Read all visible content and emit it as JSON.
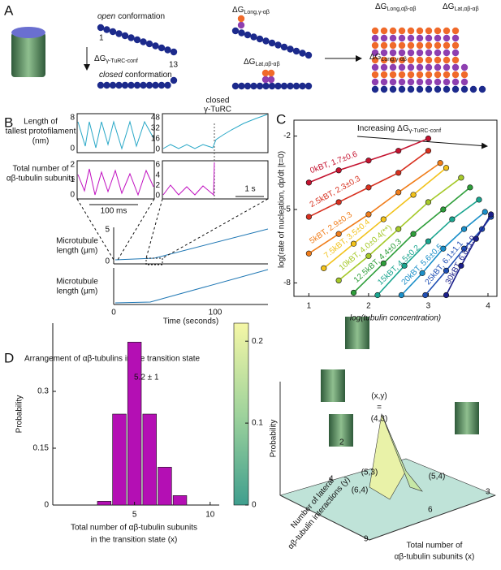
{
  "figure": {
    "A": {
      "label": "A",
      "open": "open",
      "open_rest": "conformation",
      "closed": "closed",
      "closed_rest": "conformation",
      "first": "1",
      "last": "13",
      "conf": {
        "main": "ΔG",
        "sub": "γ-TuRC-conf"
      },
      "long1": {
        "main": "ΔG",
        "sub": "Long,γ-αβ"
      },
      "lat1": {
        "main": "ΔG",
        "sub": "Lat,αβ-αβ"
      },
      "long2": {
        "main": "ΔG",
        "sub": "Long,αβ-αβ"
      },
      "lat2": {
        "main": "ΔG",
        "sub": "Lat,αβ-αβ"
      },
      "long3": {
        "main": "ΔG",
        "sub": "Long,γ-αβ"
      }
    },
    "B": {
      "label": "B",
      "len_label": [
        "Length of",
        "tallest protofilament",
        "(nm)"
      ],
      "num_label": [
        "Total number of",
        "αβ-tubulin subunits"
      ],
      "box1_ticks": [
        "8",
        "0"
      ],
      "box2_ticks": [
        "2",
        "1",
        "0"
      ],
      "box3_ticks": [
        "48",
        "32",
        "16",
        "0"
      ],
      "box4_ticks": [
        "6",
        "4",
        "2",
        "0"
      ],
      "scale1": "100 ms",
      "scale2": "1 s",
      "closed": [
        "closed",
        "γ-TuRC"
      ],
      "mt_label": [
        "Microtubule",
        "length (μm)"
      ],
      "mt_yticks": [
        "5",
        "0"
      ],
      "mt_xticks": [
        "0",
        "100"
      ],
      "time": "Time (seconds)"
    },
    "C": {
      "label": "C",
      "increasing": "Increasing",
      "inc": {
        "main": "ΔG",
        "sub": "γ-TuRC-conf"
      }
    },
    "D": {
      "label": "D",
      "title": "Arrangement of αβ-tubulins in the transition state",
      "peak": [
        "(x,y)",
        "=",
        "(4,3)"
      ],
      "p53": "(5,3)",
      "p54": "(5,4)",
      "p64": "(6,4)",
      "prob3d": "Probability",
      "ylab3d": [
        "Number of lateral",
        "αβ-tubulin interactions (y)"
      ],
      "yticks3d": [
        "2",
        "4"
      ],
      "xticks3d": [
        "9",
        "6",
        "3"
      ],
      "xlab3d": [
        "Total number of",
        "αβ-tubulin subunits (x)"
      ]
    }
  },
  "chart_data": [
    {
      "type": "line",
      "ylabel": "log(rate of nucleation,  dp/dt |t=0)",
      "xlabel": "log(tubulin concentration)",
      "xlim": [
        0.75,
        4.15
      ],
      "ylim": [
        -8.55,
        -1.35
      ],
      "xticks": [
        1,
        2,
        3,
        4
      ],
      "yticks": [
        -2,
        -5,
        -8
      ],
      "series": [
        {
          "name": "0kBT, 1.7±0.6",
          "color": "#c4122f",
          "x": [
            1,
            1.5,
            2,
            2.5,
            3
          ],
          "values": [
            -3.9,
            -3.4,
            -3.0,
            -2.6,
            -2.1
          ]
        },
        {
          "name": "2.5kBT, 2.3±0.3",
          "color": "#d7301f",
          "x": [
            1,
            1.5,
            2,
            2.5,
            3
          ],
          "values": [
            -5.3,
            -4.7,
            -4.1,
            -3.5,
            -2.6
          ]
        },
        {
          "name": "5kBT, 2.9±0.3",
          "color": "#f07d1a",
          "x": [
            1,
            1.5,
            2,
            2.5,
            3.2
          ],
          "values": [
            -6.8,
            -6.0,
            -5.2,
            -4.3,
            -3.1
          ]
        },
        {
          "name": "7.5kBT, 3.5±0.4",
          "color": "#f2c21b",
          "x": [
            1.25,
            1.75,
            2.25,
            2.75,
            3.3
          ],
          "values": [
            -7.4,
            -6.4,
            -5.4,
            -4.4,
            -3.3
          ]
        },
        {
          "name": "10kBT, 4.0±0.4(**)",
          "color": "#a6c92a",
          "x": [
            1.5,
            2,
            2.5,
            3,
            3.55
          ],
          "values": [
            -7.9,
            -6.9,
            -5.8,
            -4.7,
            -3.7
          ]
        },
        {
          "name": "12.5kBT, 4.4±0.3",
          "color": "#2e9e3a",
          "x": [
            1.75,
            2.25,
            2.75,
            3.25,
            3.7
          ],
          "values": [
            -8.4,
            -7.2,
            -6.0,
            -5.0,
            -4.1
          ]
        },
        {
          "name": "15kBT, 4.5±0.2",
          "color": "#1aa58f",
          "x": [
            2.15,
            2.6,
            3.0,
            3.4,
            3.85
          ],
          "values": [
            -8.5,
            -7.3,
            -6.3,
            -5.4,
            -4.6
          ]
        },
        {
          "name": "20kBT, 5.6±0.5",
          "color": "#1b8fc9",
          "x": [
            2.55,
            2.9,
            3.25,
            3.6,
            3.95
          ],
          "values": [
            -8.5,
            -7.6,
            -6.6,
            -5.8,
            -5.1
          ]
        },
        {
          "name": "25kBT, 6.1±1.1",
          "color": "#1f4fb4",
          "x": [
            2.95,
            3.3,
            3.6,
            3.9,
            4.05
          ],
          "values": [
            -8.5,
            -7.5,
            -6.6,
            -5.8,
            -5.3
          ]
        },
        {
          "name": "30kBT, 6.8±1.9",
          "color": "#1b1f8a",
          "x": [
            3.3,
            3.55,
            3.8,
            4.05
          ],
          "values": [
            -8.5,
            -7.3,
            -6.2,
            -5.2
          ]
        }
      ]
    },
    {
      "type": "bar",
      "ylabel": "Probability",
      "xlabel": [
        "Total number of αβ-tubulin subunits",
        "in the transition state (x)"
      ],
      "annotation": "5.2 ± 1",
      "color": "#b40fb4",
      "x": [
        3,
        4,
        5,
        6,
        7,
        8
      ],
      "values": [
        0.01,
        0.24,
        0.43,
        0.24,
        0.1,
        0.025
      ],
      "xlim": [
        -0.4,
        10.6
      ],
      "ylim": [
        0,
        0.48
      ],
      "xticks": [
        5,
        10
      ],
      "yticks": [
        0,
        0.15,
        0.3
      ]
    },
    {
      "type": "colorbar",
      "ylim": [
        0,
        0.222
      ],
      "yticks": [
        0,
        0.1,
        0.2
      ]
    }
  ]
}
